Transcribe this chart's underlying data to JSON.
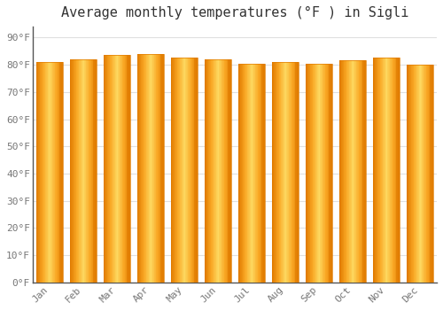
{
  "title": "Average monthly temperatures (°F ) in Sigli",
  "months": [
    "Jan",
    "Feb",
    "Mar",
    "Apr",
    "May",
    "Jun",
    "Jul",
    "Aug",
    "Sep",
    "Oct",
    "Nov",
    "Dec"
  ],
  "values": [
    81,
    82,
    83.5,
    84,
    82.5,
    82,
    80.5,
    81,
    80.5,
    81.5,
    82.5,
    80
  ],
  "bar_color_light": "#FDC93A",
  "bar_color_mid": "#F9A825",
  "bar_color_dark": "#E07B00",
  "background_color": "#ffffff",
  "plot_bg_color": "#ffffff",
  "title_fontsize": 11,
  "tick_fontsize": 8,
  "ytick_labels": [
    "0°F",
    "10°F",
    "20°F",
    "30°F",
    "40°F",
    "50°F",
    "60°F",
    "70°F",
    "80°F",
    "90°F"
  ],
  "ytick_values": [
    0,
    10,
    20,
    30,
    40,
    50,
    60,
    70,
    80,
    90
  ],
  "ylim": [
    0,
    94
  ],
  "grid_color": "#e0e0e0",
  "spine_color": "#555555",
  "label_color": "#777777"
}
